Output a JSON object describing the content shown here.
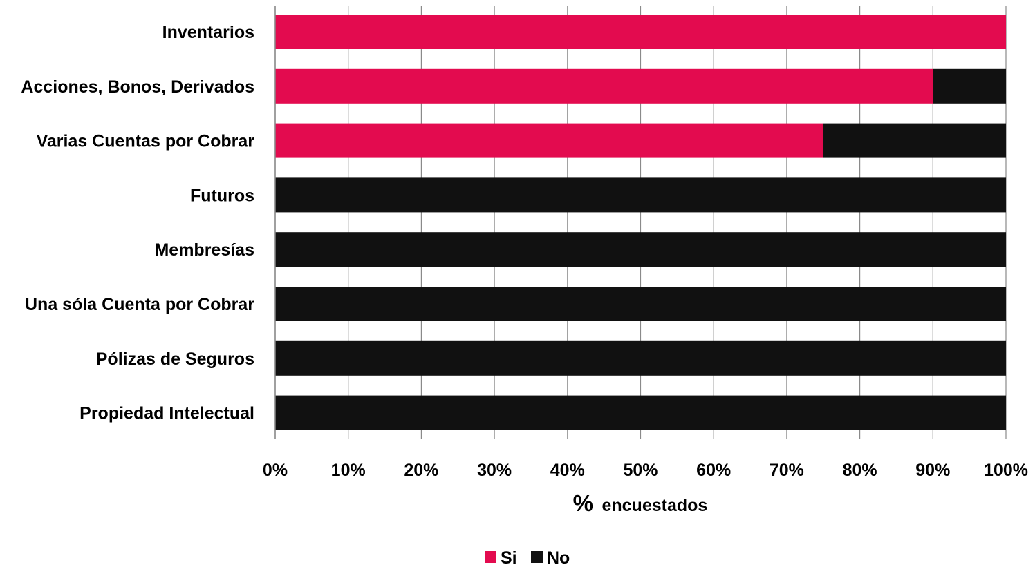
{
  "chart_data": {
    "type": "bar",
    "orientation": "horizontal",
    "stacked": true,
    "categories": [
      "Inventarios",
      "Acciones, Bonos, Derivados",
      "Varias Cuentas por Cobrar",
      "Futuros",
      "Membresías",
      "Una sóla Cuenta por Cobrar",
      "Pólizas de Seguros",
      "Propiedad Intelectual"
    ],
    "series": [
      {
        "name": "Si",
        "color": "#e30b4f",
        "values": [
          100,
          90,
          75,
          0,
          0,
          0,
          0,
          0
        ]
      },
      {
        "name": "No",
        "color": "#111111",
        "values": [
          0,
          10,
          25,
          100,
          100,
          100,
          100,
          100
        ]
      }
    ],
    "xlim": [
      0,
      100
    ],
    "x_ticks": [
      "0%",
      "10%",
      "20%",
      "30%",
      "40%",
      "50%",
      "60%",
      "70%",
      "80%",
      "90%",
      "100%"
    ],
    "xlabel_symbol": "%",
    "xlabel_text": "encuestados",
    "grid": "vertical",
    "legend_position": "bottom"
  }
}
